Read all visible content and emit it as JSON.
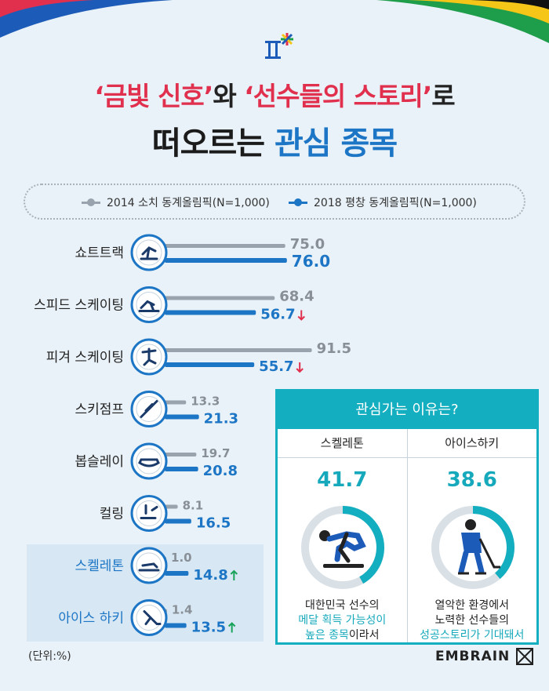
{
  "title": {
    "line1_part1": "‘금빛 신호’",
    "line1_part2": "와 ",
    "line1_part3": "‘선수들의 스토리’",
    "line1_part4": "로",
    "line2_part1": "떠오르는 ",
    "line2_part2": "관심 종목"
  },
  "legend": {
    "series_2014": "2014 소치 동계올림픽(N=1,000)",
    "series_2018": "2018 평창 동계올림픽(N=1,000)"
  },
  "colors": {
    "gray": "#98a3ad",
    "blue": "#1d76c5",
    "red": "#e0304e",
    "green": "#19a35a",
    "teal": "#13aebf"
  },
  "chart_data": {
    "type": "bar",
    "orientation": "horizontal",
    "categories": [
      "쇼트트랙",
      "스피드 스케이팅",
      "피겨 스케이팅",
      "스키점프",
      "봅슬레이",
      "컬링",
      "스켈레톤",
      "아이스 하키"
    ],
    "icons": [
      "short-track-icon",
      "speed-skating-icon",
      "figure-skating-icon",
      "ski-jump-icon",
      "bobsleigh-icon",
      "curling-icon",
      "skeleton-icon",
      "ice-hockey-icon"
    ],
    "series": [
      {
        "name": "2014 소치 동계올림픽(N=1,000)",
        "values": [
          75.0,
          68.4,
          91.5,
          13.3,
          19.7,
          8.1,
          1.0,
          1.4
        ]
      },
      {
        "name": "2018 평창 동계올림픽(N=1,000)",
        "values": [
          76.0,
          56.7,
          55.7,
          21.3,
          20.8,
          16.5,
          14.8,
          13.5
        ]
      }
    ],
    "value_labels_2014": [
      "75.0",
      "68.4",
      "91.5",
      "13.3",
      "19.7",
      "8.1",
      "1.0",
      "1.4"
    ],
    "value_labels_2018": [
      "76.0",
      "56.7",
      "55.7",
      "21.3",
      "20.8",
      "16.5",
      "14.8",
      "13.5"
    ],
    "trend": [
      "",
      "down",
      "down",
      "",
      "",
      "",
      "up",
      "up"
    ],
    "highlighted": [
      false,
      false,
      false,
      false,
      false,
      false,
      true,
      true
    ]
  },
  "unit_label": "(단위:%)",
  "brand": "EMBRAIN",
  "reason_panel": {
    "title": "관심가는 이유는?",
    "items": [
      {
        "name": "스켈레톤",
        "value": 41.7,
        "value_label": "41.7",
        "icon": "skeleton-athlete-icon",
        "desc_line1": "대한민국 선수의",
        "desc_line2": "메달 획득 가능성이",
        "desc_line3a": "높은 종목",
        "desc_line3b": "이라서"
      },
      {
        "name": "아이스하키",
        "value": 38.6,
        "value_label": "38.6",
        "icon": "hockey-player-icon",
        "desc_line1": "열악한 환경에서",
        "desc_line2": "노력한 선수들의",
        "desc_line3a": "성공스토리가 기대돼서",
        "desc_line3b": ""
      }
    ]
  }
}
